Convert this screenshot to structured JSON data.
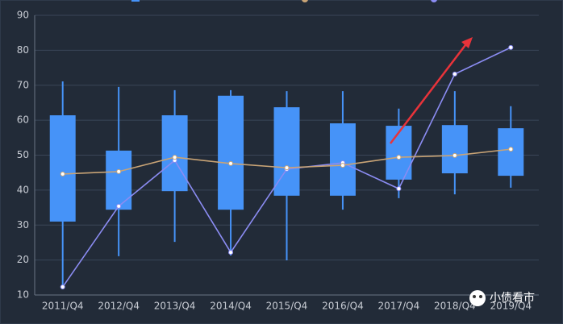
{
  "chart_data": {
    "type": "boxplot",
    "categories": [
      "2011/Q4",
      "2012/Q4",
      "2013/Q4",
      "2014/Q4",
      "2015/Q4",
      "2016/Q4",
      "2017/Q4",
      "2018/Q4",
      "2019/Q4"
    ],
    "boxes": {
      "color": "#4693f8",
      "low": [
        12.1,
        21.1,
        25.2,
        21.3,
        19.9,
        34.4,
        37.7,
        38.8,
        40.7
      ],
      "q1": [
        31.0,
        34.4,
        39.7,
        34.4,
        38.4,
        38.4,
        43.0,
        44.8,
        44.1
      ],
      "q3": [
        61.4,
        51.3,
        61.4,
        67.0,
        63.7,
        59.1,
        58.4,
        58.6,
        57.7
      ],
      "high": [
        71.1,
        69.5,
        68.6,
        68.6,
        68.3,
        68.3,
        63.3,
        68.3,
        64.0
      ]
    },
    "series": [
      {
        "color": "#8b8cf2",
        "values": [
          12.3,
          35.4,
          48.5,
          22.2,
          46.0,
          47.8,
          40.4,
          73.2,
          80.8
        ]
      },
      {
        "color": "#c9a476",
        "values": [
          44.6,
          45.3,
          49.4,
          47.6,
          46.4,
          47.1,
          49.4,
          49.9,
          51.7
        ]
      }
    ],
    "ylim": [
      10,
      90
    ],
    "yticks": [
      10,
      20,
      30,
      40,
      50,
      60,
      70,
      80,
      90
    ],
    "grid": true,
    "watermark": "小债看市"
  }
}
